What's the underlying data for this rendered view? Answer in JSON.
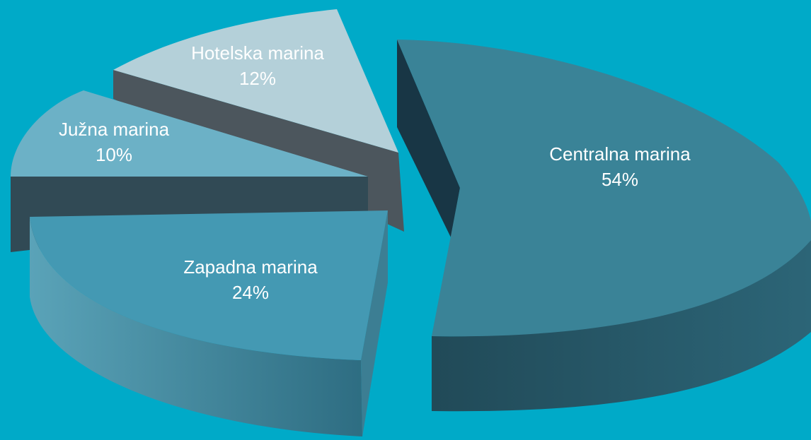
{
  "chart_data": {
    "type": "pie",
    "style": "3d-exploded",
    "background": "#00aac8",
    "slices": [
      {
        "name": "Centralna marina",
        "value": 54,
        "label": "54%",
        "color": "#3a8397"
      },
      {
        "name": "Zapadna marina",
        "value": 24,
        "label": "24%",
        "color": "#4499b3"
      },
      {
        "name": "Južna marina",
        "value": 10,
        "label": "10%",
        "color": "#6cb1c6"
      },
      {
        "name": "Hotelska marina",
        "value": 12,
        "label": "12%",
        "color": "#b4d0d9"
      }
    ]
  }
}
